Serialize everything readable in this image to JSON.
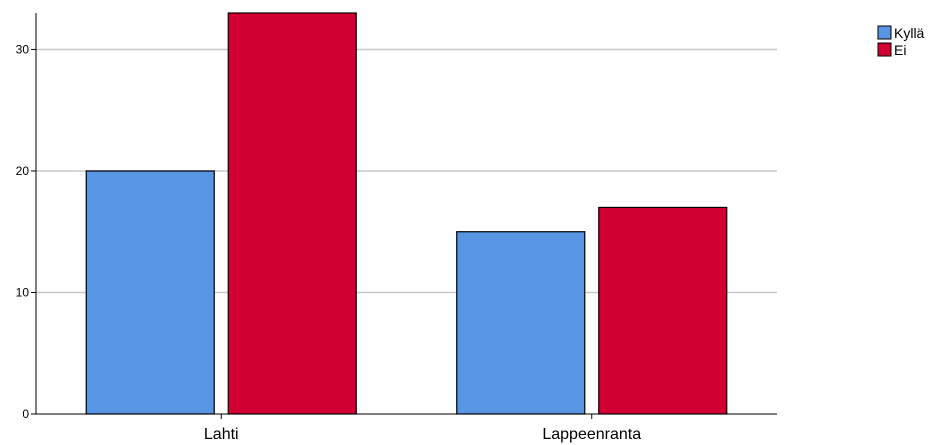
{
  "chart_data": {
    "type": "bar",
    "categories": [
      "Lahti",
      "Lappeenranta"
    ],
    "series": [
      {
        "name": "Kyllä",
        "values": [
          20,
          15
        ],
        "color": "#5896e3"
      },
      {
        "name": "Ei",
        "values": [
          33,
          17
        ],
        "color": "#d20032"
      }
    ],
    "ylim": [
      0,
      33
    ],
    "yticks": [
      0,
      10,
      20,
      30
    ],
    "grid": true,
    "legend_position": "top-right",
    "xlabel": "",
    "ylabel": "",
    "title": ""
  }
}
